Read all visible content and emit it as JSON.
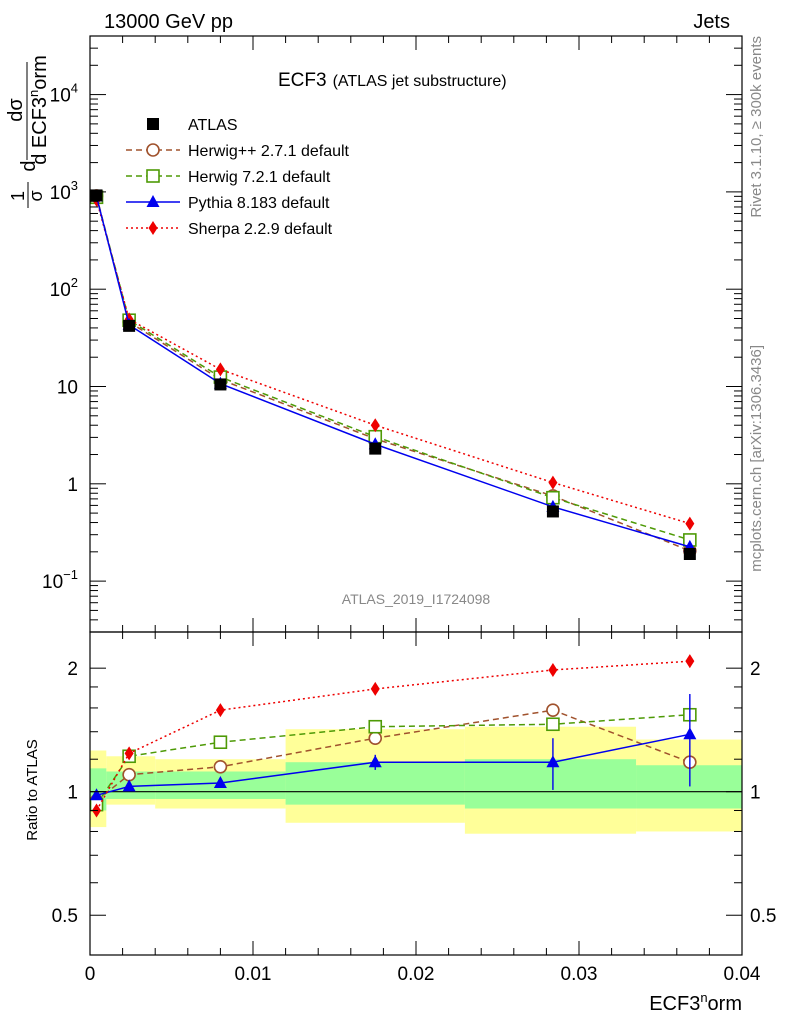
{
  "header": {
    "left": "13000 GeV pp",
    "right": "Jets"
  },
  "plot_title": "ECF3",
  "plot_subtitle": "(ATLAS jet substructure)",
  "side_text_top": "Rivet 3.1.10, ≥ 300k events",
  "side_text_bottom": "mcplots.cern.ch [arXiv:1306.3436]",
  "watermark": "ATLAS_2019_I1724098",
  "y_axis_label": {
    "frac1_num": "1",
    "frac1_den": "σ",
    "frac2_num": "dσ",
    "frac2_den": "d ECF3",
    "frac2_den_sup": "n",
    "frac2_den_tail": "orm",
    "d_prefix": "d"
  },
  "ratio_ylabel": "Ratio to ATLAS",
  "x_label": "ECF3",
  "x_label_sup": "n",
  "x_label_tail": "orm",
  "colors": {
    "atlas": "#000000",
    "herwigpp": "#a0522d",
    "herwig7": "#4e9a06",
    "pythia": "#0000ee",
    "sherpa": "#ee0000",
    "band_yellow": "#ffff99",
    "band_green": "#99ff99"
  },
  "chart_data": {
    "type": "line",
    "x": [
      0.0004,
      0.0024,
      0.008,
      0.0175,
      0.0284,
      0.0368
    ],
    "xlim": [
      0,
      0.04
    ],
    "x_ticks": [
      "0",
      "0.01",
      "0.02",
      "0.03",
      "0.04"
    ],
    "x_tick_values": [
      0,
      0.01,
      0.02,
      0.03,
      0.04
    ],
    "main": {
      "ylog": true,
      "ylim": [
        0.03,
        40000
      ],
      "y_ticks": [
        {
          "v": 10000,
          "base": "10",
          "exp": "4"
        },
        {
          "v": 1000,
          "base": "10",
          "exp": "3"
        },
        {
          "v": 100,
          "base": "10",
          "exp": "2"
        },
        {
          "v": 10,
          "base": "10",
          "exp": ""
        },
        {
          "v": 1,
          "base": "1",
          "exp": ""
        },
        {
          "v": 0.1,
          "base": "10",
          "exp": "−1"
        }
      ],
      "series": [
        {
          "key": "atlas",
          "name": "ATLAS",
          "marker": "square-filled",
          "line": "none",
          "values": [
            920,
            42,
            10.5,
            2.3,
            0.52,
            0.19
          ]
        },
        {
          "key": "herwigpp",
          "name": "Herwig++ 2.7.1 default",
          "marker": "circle-open",
          "line": "dashed",
          "values": [
            910,
            46,
            11.8,
            2.9,
            0.75,
            0.205
          ]
        },
        {
          "key": "herwig7",
          "name": "Herwig 7.2.1 default",
          "marker": "square-open",
          "line": "dashed",
          "values": [
            880,
            48,
            12.5,
            3.05,
            0.72,
            0.265
          ]
        },
        {
          "key": "pythia",
          "name": "Pythia 8.183 default",
          "marker": "triangle-filled",
          "line": "solid",
          "values": [
            900,
            43,
            10.7,
            2.55,
            0.58,
            0.225
          ]
        },
        {
          "key": "sherpa",
          "name": "Sherpa 2.2.9 default",
          "marker": "diamond-filled",
          "line": "dotted",
          "values": [
            830,
            49,
            15.0,
            4.0,
            1.03,
            0.39
          ]
        }
      ]
    },
    "ratio": {
      "ylog": true,
      "ylim": [
        0.4,
        2.45
      ],
      "y_ticks": [
        {
          "v": 2,
          "label": "2"
        },
        {
          "v": 1,
          "label": "1"
        },
        {
          "v": 0.5,
          "label": "0.5"
        }
      ],
      "bin_edges": [
        0,
        0.001,
        0.004,
        0.012,
        0.023,
        0.0335,
        0.04
      ],
      "band_yellow": [
        [
          0.82,
          1.26
        ],
        [
          0.93,
          1.22
        ],
        [
          0.91,
          1.2
        ],
        [
          0.84,
          1.42
        ],
        [
          0.79,
          1.44
        ],
        [
          0.8,
          1.34
        ]
      ],
      "band_green": [
        [
          0.9,
          1.14
        ],
        [
          0.96,
          1.12
        ],
        [
          0.96,
          1.12
        ],
        [
          0.93,
          1.18
        ],
        [
          0.91,
          1.2
        ],
        [
          0.91,
          1.16
        ]
      ],
      "series": [
        {
          "key": "herwigpp",
          "values": [
            0.95,
            1.1,
            1.15,
            1.35,
            1.58,
            1.18
          ]
        },
        {
          "key": "herwig7",
          "values": [
            0.93,
            1.22,
            1.32,
            1.44,
            1.46,
            1.54
          ]
        },
        {
          "key": "pythia",
          "values": [
            0.98,
            1.03,
            1.05,
            1.18,
            1.18,
            1.38
          ],
          "errors": [
            0.02,
            0.02,
            0.02,
            0.05,
            0.17,
            0.35
          ]
        },
        {
          "key": "sherpa",
          "values": [
            0.9,
            1.24,
            1.58,
            1.78,
            1.98,
            2.08
          ],
          "errors": [
            0.02,
            0.02,
            0.02,
            0.02,
            0.03,
            0.07
          ]
        }
      ]
    }
  }
}
